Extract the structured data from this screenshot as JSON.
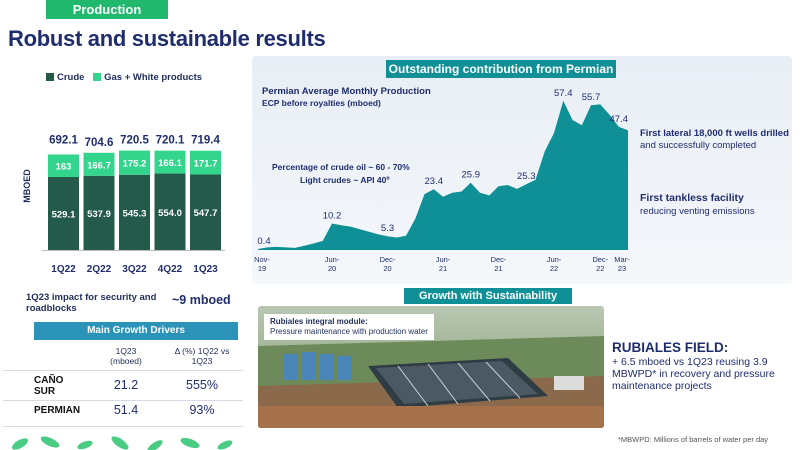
{
  "header": {
    "section_tag": "Production",
    "title": "Robust and sustainable results"
  },
  "colors": {
    "crude": "#235a4a",
    "gas": "#33d48c",
    "teal": "#0f8f96",
    "navy": "#1f2d6e",
    "green": "#1fb86d"
  },
  "chart_data": [
    {
      "type": "bar",
      "stacked": true,
      "categories": [
        "1Q22",
        "2Q22",
        "3Q22",
        "4Q22",
        "1Q23"
      ],
      "series": [
        {
          "name": "Crude",
          "values": [
            529.1,
            537.9,
            545.3,
            554.0,
            547.7
          ]
        },
        {
          "name": "Gas + White products",
          "values": [
            163,
            166.7,
            175.2,
            166.1,
            171.7
          ]
        }
      ],
      "segment_labels": [
        [
          "529.1",
          "537.9",
          "545.3",
          "554.0",
          "547.7"
        ],
        [
          "163",
          "166.7",
          "175.2",
          "166.1",
          "171.7"
        ]
      ],
      "totals": [
        "692.1",
        "704.6",
        "720.5",
        "720.1",
        "719.4"
      ],
      "ylabel": "MBOED",
      "legend_position": "top"
    },
    {
      "type": "area",
      "title": "Permian Average Monthly Production",
      "subtitle": "ECP before royalties (mboed)",
      "x_ticks": [
        [
          "Nov-",
          "19"
        ],
        [
          "Jun-",
          "20"
        ],
        [
          "Dec-",
          "20"
        ],
        [
          "Jun-",
          "21"
        ],
        [
          "Dec-",
          "21"
        ],
        [
          "Jun-",
          "22"
        ],
        [
          "Dec-",
          "22"
        ],
        [
          "Mar-",
          "23"
        ]
      ],
      "x": [
        0,
        1,
        2,
        3,
        4,
        5,
        6,
        7,
        8,
        9,
        10,
        11,
        12,
        13,
        14,
        15,
        16,
        17,
        18,
        19,
        20,
        21,
        22,
        23,
        24,
        25,
        26,
        27,
        28,
        29,
        30,
        31,
        32,
        33,
        34,
        35,
        36,
        37,
        38,
        39,
        40
      ],
      "values": [
        0.4,
        1.0,
        1.2,
        1.0,
        0.8,
        1.6,
        2.5,
        3.5,
        10.2,
        9.5,
        9.0,
        8.0,
        7.0,
        6.0,
        5.3,
        4.8,
        5.5,
        12.0,
        21.5,
        23.4,
        20.5,
        22.0,
        22.5,
        25.9,
        22.0,
        21.0,
        24.5,
        25.0,
        23.5,
        25.3,
        27.0,
        38.0,
        45.0,
        57.4,
        50.0,
        48.0,
        55.7,
        56.0,
        52.0,
        47.4,
        46.0
      ],
      "point_labels": [
        {
          "x": 0,
          "label": "0.4"
        },
        {
          "x": 8,
          "label": "10.2"
        },
        {
          "x": 14,
          "label": "5.3"
        },
        {
          "x": 19,
          "label": "23.4"
        },
        {
          "x": 23,
          "label": "25.9"
        },
        {
          "x": 29,
          "label": "25.3"
        },
        {
          "x": 33,
          "label": "57.4"
        },
        {
          "x": 36,
          "label": "55.7"
        },
        {
          "x": 39,
          "label": "47.4"
        }
      ],
      "annotations": [
        "Percentage of crude oil ~ 60 - 70%",
        "Light crudes ~ API 40º"
      ],
      "ylim": [
        0,
        60
      ]
    }
  ],
  "impact": {
    "label": "1Q23 impact for security and roadblocks",
    "value": "~9 mboed"
  },
  "drivers": {
    "title": "Main Growth Drivers",
    "col1": "1Q23\n(mboed)",
    "col2": "Δ (%) 1Q22 vs\n1Q23",
    "rows": [
      {
        "name": "CAÑO\nSUR",
        "v1": "21.2",
        "v2": "555%"
      },
      {
        "name": "PERMIAN",
        "v1": "51.4",
        "v2": "93%"
      }
    ]
  },
  "permian_panel": {
    "header": "Outstanding contribution from Permian",
    "note1_bold": "First lateral 18,000 ft wells drilled",
    "note1_rest": " and successfully completed",
    "note2_bold": "First tankless facility",
    "note2_rest": "reducing venting emissions"
  },
  "growth_panel": {
    "header": "Growth with Sustainability",
    "photo_label_bold": "Rubiales integral module:",
    "photo_label_rest": "Pressure maintenance with production water",
    "field_title": "RUBIALES FIELD:",
    "field_text": "+ 6.5 mboed vs 1Q23 reusing 3.9 MBWPD* in recovery and pressure maintenance projects",
    "footnote": "*MBWPD: Millions of barrels of water per day"
  }
}
